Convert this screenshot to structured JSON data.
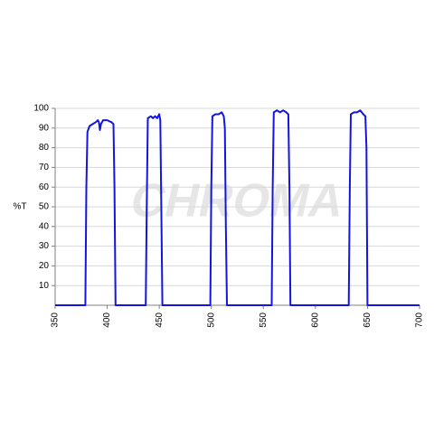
{
  "chart_data": {
    "type": "line",
    "ylabel": "%T",
    "watermark": "CHROMA",
    "x": [
      350,
      379,
      380,
      381,
      383,
      386,
      389,
      391,
      392,
      393,
      394,
      396,
      400,
      404,
      406,
      407,
      408,
      437,
      438,
      439,
      442,
      444,
      446,
      448,
      450,
      451,
      452,
      453,
      499,
      500,
      501,
      504,
      507,
      510,
      512,
      513,
      514,
      515,
      558,
      559,
      560,
      563,
      566,
      569,
      572,
      574,
      575,
      576,
      632,
      633,
      634,
      637,
      640,
      643,
      646,
      648,
      649,
      650,
      700
    ],
    "series": [
      {
        "name": "%T",
        "color": "#1414e0",
        "values": [
          0,
          0,
          60,
          88,
          91,
          92,
          93,
          94,
          93,
          89,
          92,
          94,
          94,
          93,
          92,
          60,
          0,
          0,
          50,
          95,
          96,
          95,
          96,
          95,
          97,
          94,
          50,
          0,
          0,
          60,
          96,
          97,
          97,
          98,
          96,
          90,
          40,
          0,
          0,
          60,
          98,
          99,
          98,
          99,
          98,
          97,
          60,
          0,
          0,
          60,
          97,
          98,
          98,
          99,
          97,
          96,
          80,
          0,
          0
        ]
      }
    ],
    "xlim": [
      350,
      700
    ],
    "xticks": [
      350,
      400,
      450,
      500,
      550,
      600,
      650,
      700
    ],
    "ylim": [
      0,
      100
    ],
    "yticks": [
      10,
      20,
      30,
      40,
      50,
      60,
      70,
      80,
      90,
      100
    ],
    "grid": true
  }
}
